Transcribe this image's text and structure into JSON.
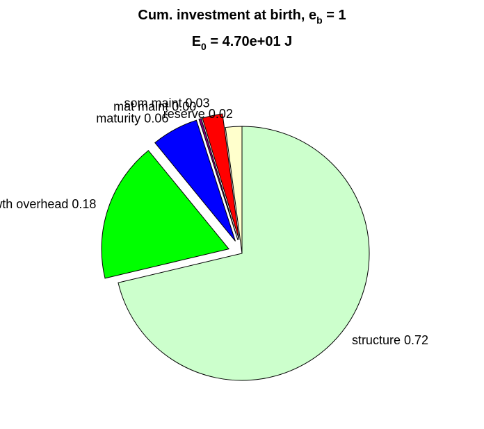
{
  "chart_data": {
    "type": "pie",
    "title": {
      "line1_prefix": "Cum. investment at birth, e",
      "line1_sub": "b",
      "line1_suffix": " = 1",
      "line2_prefix": "E",
      "line2_sub": "0",
      "line2_suffix": " = 4.70e+01 J"
    },
    "slices": [
      {
        "label": "structure",
        "value_label": "0.72",
        "value": 0.72,
        "color": "#ccffcc",
        "exploded": false
      },
      {
        "label": "growth overhead",
        "value_label": "0.18",
        "value": 0.18,
        "color": "#00ff00",
        "exploded": true
      },
      {
        "label": "maturity",
        "value_label": "0.06",
        "value": 0.06,
        "color": "#0000ff",
        "exploded": true
      },
      {
        "label": "mat maint",
        "value_label": "0.00",
        "value": 0.003,
        "color": "#7f007f",
        "exploded": true
      },
      {
        "label": "som maint",
        "value_label": "0.03",
        "value": 0.026,
        "color": "#ff0000",
        "exploded": true
      },
      {
        "label": "reserve",
        "value_label": "0.02",
        "value": 0.021,
        "color": "#ffffcc",
        "exploded": false
      }
    ]
  }
}
